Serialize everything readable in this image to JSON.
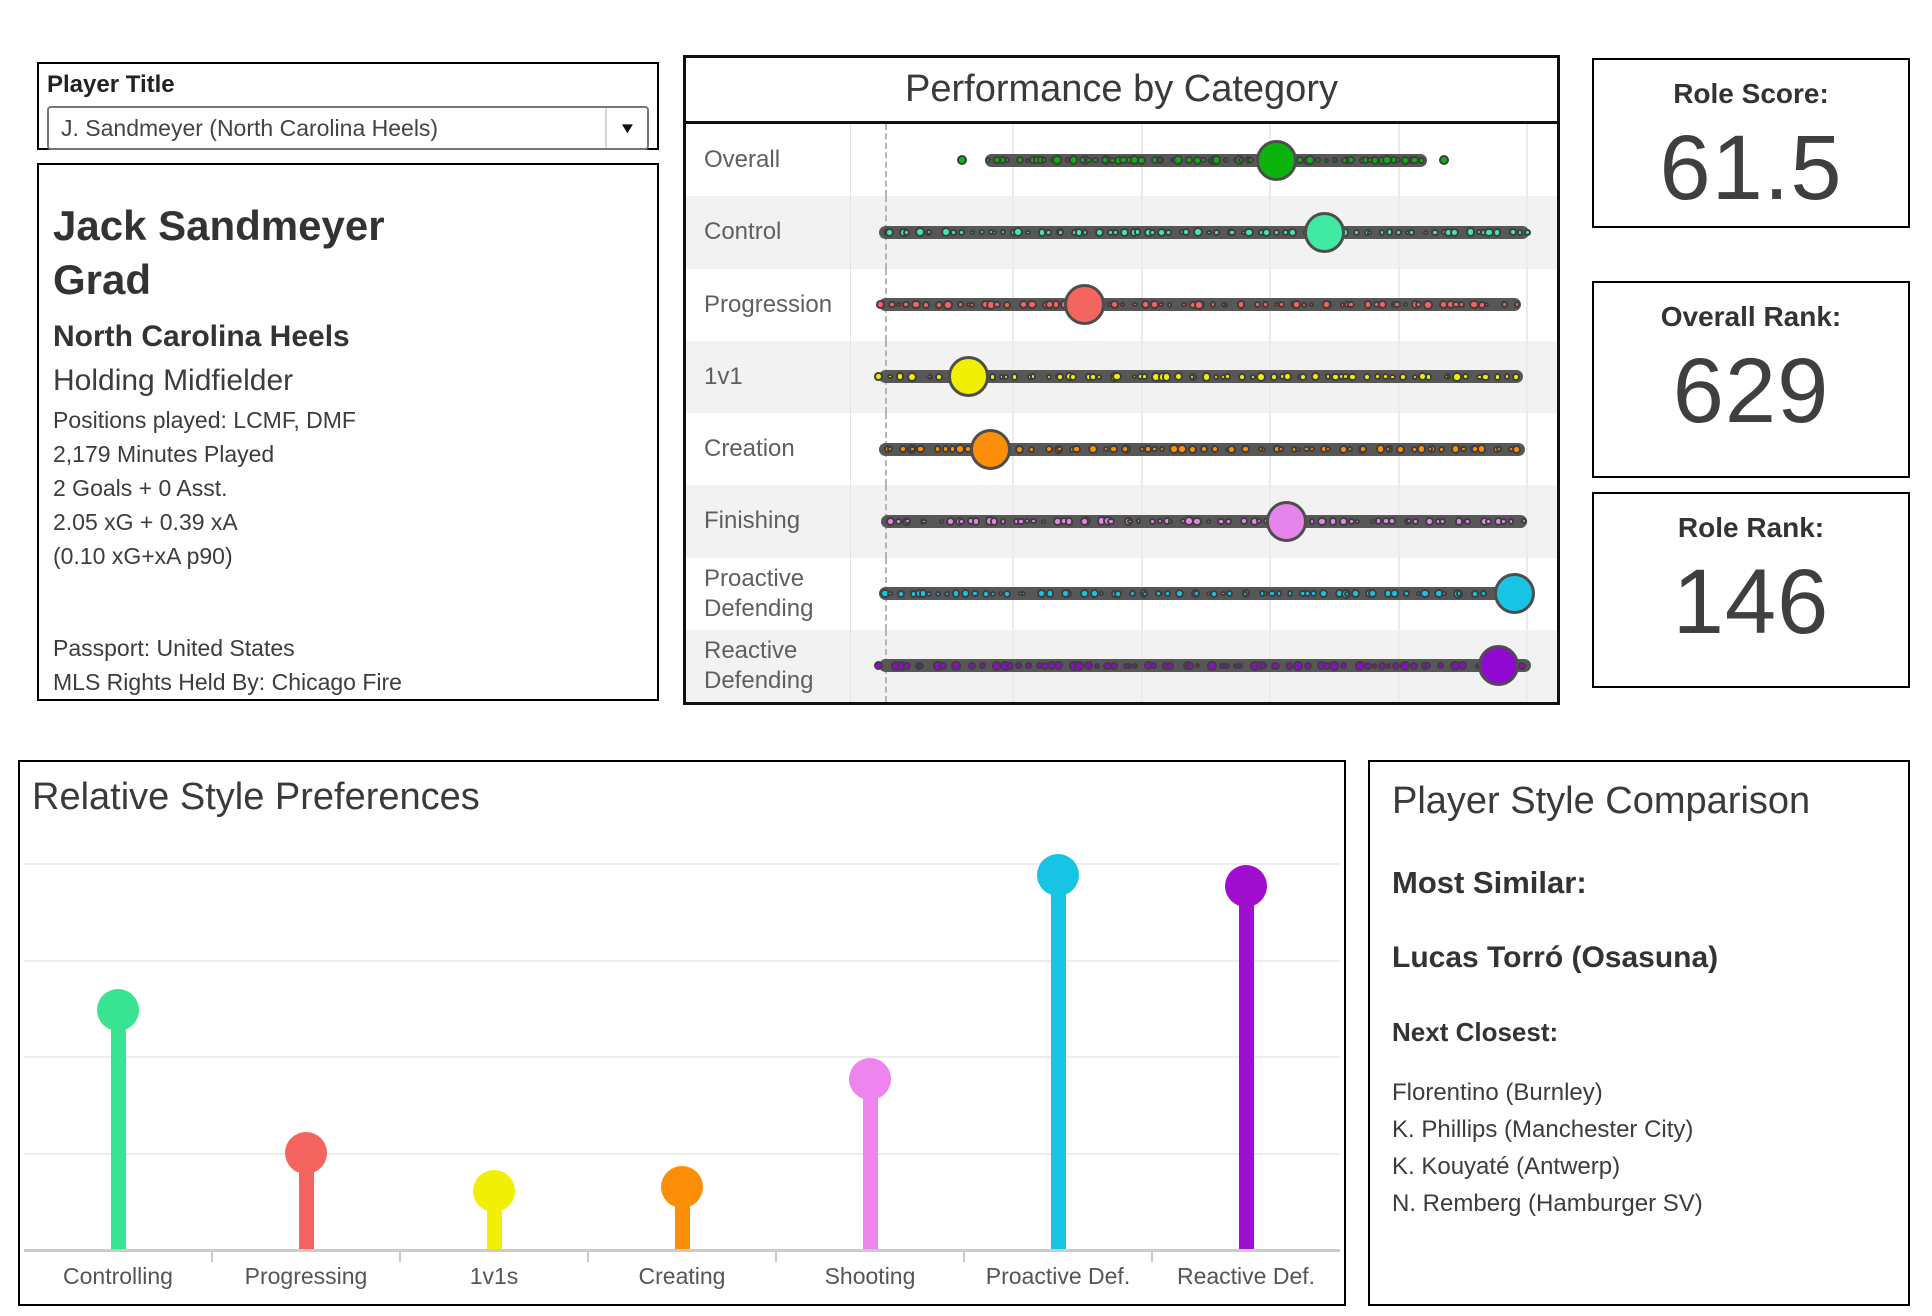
{
  "player_filter": {
    "label": "Player Title",
    "selected": "J. Sandmeyer (North Carolina Heels)"
  },
  "player_info": {
    "name_line1": "Jack Sandmeyer",
    "name_line2": "Grad",
    "team": "North Carolina Heels",
    "role": "Holding Midfielder",
    "detail_lines": [
      "Positions played: LCMF, DMF",
      "2,179 Minutes Played",
      "2 Goals + 0 Asst.",
      "2.05 xG + 0.39 xA",
      "(0.10 xG+xA p90)"
    ],
    "passport": "Passport: United States",
    "mls_rights": "MLS Rights Held By: Chicago Fire"
  },
  "stat_boxes": [
    {
      "label": "Role Score:",
      "value": "61.5"
    },
    {
      "label": "Overall Rank:",
      "value": "629"
    },
    {
      "label": "Role Rank:",
      "value": "146"
    }
  ],
  "icons": {
    "dropdown_arrow": "▼"
  },
  "chart_data": [
    {
      "type": "strip-dot",
      "title": "Performance by Category",
      "axis": {
        "min": 0,
        "max": 100,
        "reference_line_at": 0,
        "gridlines_at": [
          20,
          40,
          60,
          80,
          100
        ],
        "grid": true
      },
      "categories": [
        "Overall",
        "Control",
        "Progression",
        "1v1",
        "Creation",
        "Finishing",
        "Proactive Defending",
        "Reactive Defending"
      ],
      "colors": [
        "#0db30d",
        "#40e9a4",
        "#f4655f",
        "#f1ef04",
        "#fd8e08",
        "#e584ea",
        "#18c4e4",
        "#9109d1"
      ],
      "player_values": [
        61,
        68.5,
        31,
        13,
        16.5,
        62.5,
        98,
        95.5
      ],
      "strip_ranges": [
        [
          15.5,
          84.5
        ],
        [
          -1,
          100.3
        ],
        [
          -1,
          99.1
        ],
        [
          -1,
          99.4
        ],
        [
          -1,
          99.7
        ],
        [
          -0.6,
          100
        ],
        [
          -1,
          100
        ],
        [
          -1,
          100.6
        ]
      ],
      "outlier_values": [
        [
          12,
          87
        ],
        [],
        [],
        [],
        [],
        [],
        [],
        []
      ]
    },
    {
      "type": "lollipop",
      "title": "Relative Style Preferences",
      "categories": [
        "Controlling",
        "Progressing",
        "1v1s",
        "Creating",
        "Shooting",
        "Proactive Def.",
        "Reactive Def."
      ],
      "values": [
        62,
        25,
        15,
        16,
        44,
        97,
        94
      ],
      "colors": [
        "#38e392",
        "#f4655f",
        "#f1ef04",
        "#fd8e08",
        "#ee85ee",
        "#18c4e4",
        "#a00fd0"
      ],
      "ylim": [
        0,
        100
      ],
      "grid": true,
      "legend": "none"
    }
  ],
  "comparison": {
    "title": "Player Style Comparison",
    "most_similar_label": "Most Similar:",
    "most_similar": "Lucas Torró (Osasuna)",
    "next_closest_label": "Next Closest:",
    "next_closest": [
      "Florentino (Burnley)",
      "K. Phillips (Manchester City)",
      "K. Kouyaté (Antwerp)",
      "N. Remberg (Hamburger SV)"
    ]
  }
}
